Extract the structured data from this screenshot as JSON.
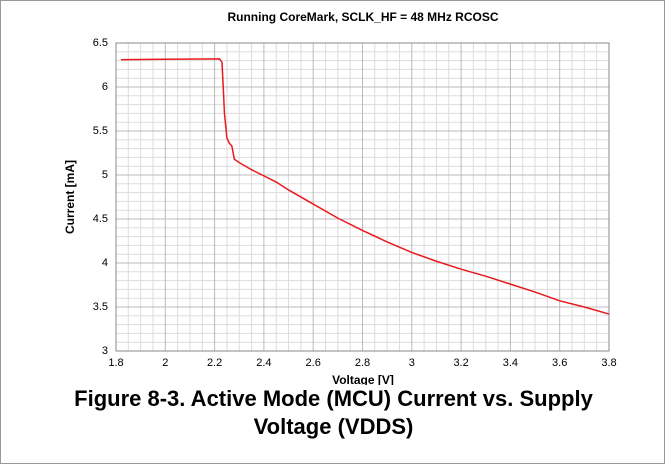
{
  "chart_data": {
    "type": "line",
    "title": "Running CoreMark, SCLK_HF = 48 MHz RCOSC",
    "xlabel": "Voltage [V]",
    "ylabel": "Current [mA]",
    "caption": "Figure 8-3. Active Mode (MCU) Current vs. Supply Voltage (VDDS)",
    "x": [
      1.82,
      2.0,
      2.22,
      2.23,
      2.235,
      2.24,
      2.25,
      2.26,
      2.27,
      2.28,
      2.3,
      2.35,
      2.4,
      2.45,
      2.5,
      2.6,
      2.7,
      2.8,
      2.9,
      3.0,
      3.1,
      3.2,
      3.3,
      3.4,
      3.5,
      3.6,
      3.7,
      3.8
    ],
    "series": [
      {
        "color": "#e8191e",
        "values": [
          6.31,
          6.315,
          6.32,
          6.28,
          6.0,
          5.7,
          5.42,
          5.36,
          5.33,
          5.18,
          5.14,
          5.06,
          4.99,
          4.92,
          4.83,
          4.67,
          4.51,
          4.37,
          4.24,
          4.12,
          4.02,
          3.93,
          3.85,
          3.76,
          3.67,
          3.57,
          3.5,
          3.42
        ]
      }
    ],
    "xlim": [
      1.8,
      3.8
    ],
    "xticks": [
      1.8,
      2,
      2.2,
      2.4,
      2.6,
      2.8,
      3,
      3.2,
      3.4,
      3.6,
      3.8
    ],
    "ylim": [
      3,
      6.5
    ],
    "yticks": [
      3,
      3.5,
      4,
      4.5,
      5,
      5.5,
      6,
      6.5
    ],
    "grid": true,
    "minor_grid": true
  }
}
